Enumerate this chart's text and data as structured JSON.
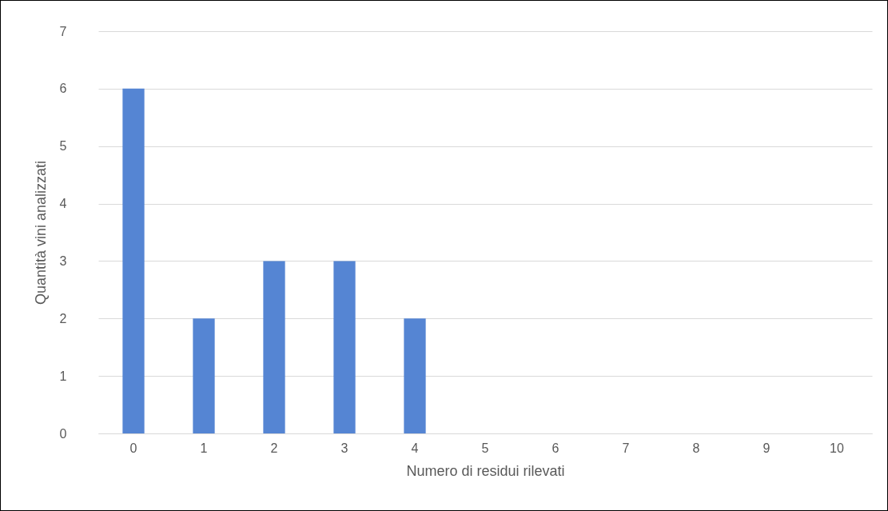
{
  "chart_data": {
    "type": "bar",
    "xlabel": "Numero di residui rilevati",
    "ylabel": "Quantità vini analizzati",
    "categories": [
      "0",
      "1",
      "2",
      "3",
      "4",
      "5",
      "6",
      "7",
      "8",
      "9",
      "10"
    ],
    "values": [
      6,
      2,
      3,
      3,
      2,
      0,
      0,
      0,
      0,
      0,
      0
    ],
    "color": "#5585d3",
    "ylim": [
      0,
      7
    ],
    "yticks": [
      0,
      1,
      2,
      3,
      4,
      5,
      6,
      7
    ],
    "grid": "y"
  }
}
